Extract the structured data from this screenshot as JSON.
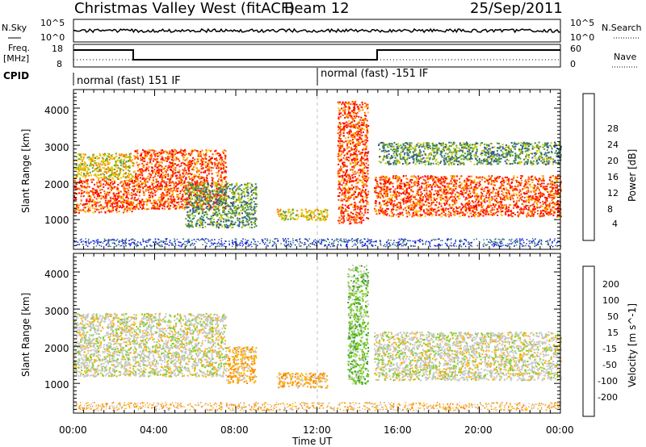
{
  "header": {
    "station": "Christmas Valley West (fitACF)",
    "beam": "Beam 12",
    "date": "25/Sep/2011"
  },
  "top_panels": {
    "nsky_label": "N.Sky",
    "nsearch_label": "N.Search",
    "nsky_ticks": [
      "10^5",
      "10^0"
    ],
    "nsearch_ticks": [
      "10^5",
      "10^0"
    ],
    "freq_label_1": "Freq.",
    "freq_label_2": "[MHz]",
    "freq_ticks": [
      "18",
      "8"
    ],
    "nave_label": "Nave",
    "nave_ticks": [
      "60",
      "0"
    ],
    "cpid_label": "CPID",
    "cpid_segments": [
      "normal (fast) 151 IF",
      "normal (fast) -151 IF"
    ]
  },
  "axes": {
    "xlabel": "Time UT",
    "x_ticks": [
      "00:00",
      "04:00",
      "08:00",
      "12:00",
      "16:00",
      "20:00",
      "00:00"
    ],
    "ylabel": "Slant Range [km]",
    "y_ticks": [
      "1000",
      "2000",
      "3000",
      "4000"
    ]
  },
  "power_colorbar": {
    "label": "Power [dB]",
    "ticks": [
      "28",
      "24",
      "20",
      "16",
      "12",
      "8",
      "4"
    ],
    "colors": [
      "#ff0000",
      "#ff4000",
      "#ff8000",
      "#ffc000",
      "#c8c800",
      "#60a030",
      "#308060",
      "#3050a0",
      "#0000ff"
    ]
  },
  "velocity_colorbar": {
    "label": "Velocity [m s^-1]",
    "ticks": [
      "200",
      "100",
      "50",
      "15",
      "-15",
      "-50",
      "-100",
      "-200"
    ],
    "colors": [
      "#2030c0",
      "#3a6a70",
      "#3a9a30",
      "#7ad020",
      "#c8c8c8",
      "#ffb000",
      "#ff8000",
      "#ff4000",
      "#ff0000"
    ]
  },
  "chart_data": {
    "type": "heatmap",
    "x_range_hours": [
      0,
      24
    ],
    "y_range_km": [
      200,
      4500
    ],
    "power_regions": [
      {
        "t0": 0.0,
        "t1": 3.0,
        "r0": 1200,
        "r1": 2100,
        "level": "high"
      },
      {
        "t0": 0.0,
        "t1": 3.0,
        "r0": 2100,
        "r1": 2800,
        "level": "mid"
      },
      {
        "t0": 3.0,
        "t1": 7.5,
        "r0": 1300,
        "r1": 2900,
        "level": "high"
      },
      {
        "t0": 5.5,
        "t1": 9.0,
        "r0": 800,
        "r1": 2000,
        "level": "low"
      },
      {
        "t0": 10.0,
        "t1": 12.5,
        "r0": 1000,
        "r1": 1300,
        "level": "mid"
      },
      {
        "t0": 13.0,
        "t1": 14.5,
        "r0": 900,
        "r1": 4200,
        "level": "high"
      },
      {
        "t0": 14.8,
        "t1": 24.0,
        "r0": 1100,
        "r1": 2200,
        "level": "high"
      },
      {
        "t0": 15.0,
        "t1": 24.0,
        "r0": 2500,
        "r1": 3100,
        "level": "low"
      }
    ],
    "velocity_regions": [
      {
        "t0": 0.0,
        "t1": 7.5,
        "r0": 1200,
        "r1": 2900,
        "level": "low"
      },
      {
        "t0": 7.5,
        "t1": 9.0,
        "r0": 1000,
        "r1": 2000,
        "level": "neg"
      },
      {
        "t0": 10.0,
        "t1": 12.5,
        "r0": 900,
        "r1": 1300,
        "level": "neg"
      },
      {
        "t0": 13.5,
        "t1": 14.5,
        "r0": 1000,
        "r1": 4200,
        "level": "pos"
      },
      {
        "t0": 14.8,
        "t1": 24.0,
        "r0": 1100,
        "r1": 2400,
        "level": "low"
      }
    ]
  }
}
